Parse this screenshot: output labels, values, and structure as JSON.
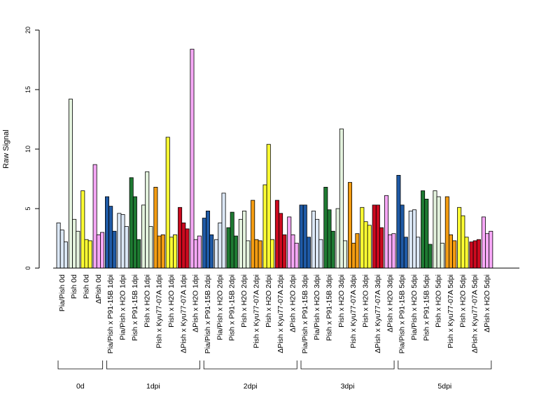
{
  "chart_data": {
    "type": "bar",
    "ylabel": "Raw Signal",
    "ylim": [
      0,
      20
    ],
    "yticks": [
      0,
      5,
      10,
      15,
      20
    ],
    "grid": false,
    "colors": {
      "lightblue": "#dce8f6",
      "blue": "#1f5aa6",
      "darkgreen": "#1e7a32",
      "lightgreen": "#e4f3de",
      "orange": "#f39c12",
      "yellow": "#ffff33",
      "red": "#cc0a1f",
      "violet": "#f6a8f6"
    },
    "groups": [
      {
        "label": "Pia/Pish 0d",
        "color": "lightblue",
        "values": [
          3.8,
          3.2,
          2.2
        ]
      },
      {
        "label": "Pish 0d",
        "color": "lightgreen",
        "values": [
          14.2,
          4.1,
          3.1
        ]
      },
      {
        "label": "Pish 0d",
        "color": "yellow",
        "values": [
          6.5,
          2.4,
          2.3
        ]
      },
      {
        "label": "ΔPish 0d",
        "color": "violet",
        "values": [
          8.7,
          2.8,
          3.0
        ]
      },
      {
        "label": "Pia/Pish x P91-15B 1dpi",
        "color": "blue",
        "values": [
          6.0,
          5.2,
          3.1
        ]
      },
      {
        "label": "Pia/Pish x H2O 1dpi",
        "color": "lightblue",
        "values": [
          4.6,
          4.5,
          3.5
        ]
      },
      {
        "label": "Pish x P91-15B 1dpi",
        "color": "darkgreen",
        "values": [
          7.6,
          6.0,
          2.4
        ]
      },
      {
        "label": "Pish x H2O 1dpi",
        "color": "lightgreen",
        "values": [
          5.3,
          8.1,
          3.5
        ]
      },
      {
        "label": "Pish x Kyu77-07A 1dpi",
        "color": "orange",
        "values": [
          6.8,
          2.7,
          2.8
        ]
      },
      {
        "label": "Pish x H2O 1dpi",
        "color": "yellow",
        "values": [
          11.0,
          2.6,
          2.8
        ]
      },
      {
        "label": "ΔPish x Kyu77-07A 1dpi",
        "color": "red",
        "values": [
          5.1,
          3.8,
          3.3
        ]
      },
      {
        "label": "ΔPish x H2O 1dpi",
        "color": "violet",
        "values": [
          18.4,
          2.4,
          2.7
        ]
      },
      {
        "label": "Pia/Pish x P91-15B 2dpi",
        "color": "blue",
        "values": [
          4.2,
          4.8,
          2.8
        ]
      },
      {
        "label": "Pia/Pish x H2O 2dpi",
        "color": "lightblue",
        "values": [
          2.4,
          3.8,
          6.3
        ]
      },
      {
        "label": "Pish x P91-15B 2dpi",
        "color": "darkgreen",
        "values": [
          3.4,
          4.7,
          2.7
        ]
      },
      {
        "label": "Pish x H2O 2dpi",
        "color": "lightgreen",
        "values": [
          4.1,
          4.8,
          2.3
        ]
      },
      {
        "label": "Pish x Kyu77-07A 2dpi",
        "color": "orange",
        "values": [
          5.7,
          2.4,
          2.3
        ]
      },
      {
        "label": "Pish x H2O 2dpi",
        "color": "yellow",
        "values": [
          7.0,
          10.4,
          2.4
        ]
      },
      {
        "label": "ΔPish x Kyu77-07A 2dpi",
        "color": "red",
        "values": [
          5.7,
          4.6,
          2.8
        ]
      },
      {
        "label": "ΔPish x H2O 2dpi",
        "color": "violet",
        "values": [
          4.3,
          2.8,
          2.1
        ]
      },
      {
        "label": "Pia/Pish x P91-15B 3dpi",
        "color": "blue",
        "values": [
          5.3,
          5.3,
          2.6
        ]
      },
      {
        "label": "Pia/Pish x H2O 3dpi",
        "color": "lightblue",
        "values": [
          4.8,
          4.1,
          2.4
        ]
      },
      {
        "label": "Pish x P91-15B 3dpi",
        "color": "darkgreen",
        "values": [
          6.8,
          4.9,
          3.1
        ]
      },
      {
        "label": "Pish x H2O 3dpi",
        "color": "lightgreen",
        "values": [
          5.0,
          11.7,
          2.3
        ]
      },
      {
        "label": "Pish x Kyu77-07A 3dpi",
        "color": "orange",
        "values": [
          7.2,
          2.1,
          2.9
        ]
      },
      {
        "label": "Pish x H2O 3dpi",
        "color": "yellow",
        "values": [
          5.1,
          3.9,
          3.6
        ]
      },
      {
        "label": "ΔPish x Kyu77-07A 3dpi",
        "color": "red",
        "values": [
          5.3,
          5.3,
          3.4
        ]
      },
      {
        "label": "ΔPish x H2O 3dpi",
        "color": "violet",
        "values": [
          6.1,
          2.8,
          2.9
        ]
      },
      {
        "label": "Pia/Pish x P91-15B 5dpi",
        "color": "blue",
        "values": [
          7.8,
          5.3,
          2.6
        ]
      },
      {
        "label": "Pia/Pish x H2O 5dpi",
        "color": "lightblue",
        "values": [
          4.8,
          4.9,
          2.6
        ]
      },
      {
        "label": "Pish x P91-15B 5dpi",
        "color": "darkgreen",
        "values": [
          6.5,
          5.8,
          2.0
        ]
      },
      {
        "label": "Pish x H2O 5dpi",
        "color": "lightgreen",
        "values": [
          6.5,
          6.0,
          2.1
        ]
      },
      {
        "label": "Pish x Kyu77-07A 5dpi",
        "color": "orange",
        "values": [
          6.0,
          2.8,
          2.3
        ]
      },
      {
        "label": "Pish x H2O 5dpi",
        "color": "yellow",
        "values": [
          5.1,
          4.4,
          2.6
        ]
      },
      {
        "label": "ΔPish x Kyu77-07A 5dpi",
        "color": "red",
        "values": [
          2.2,
          2.3,
          2.4
        ]
      },
      {
        "label": "ΔPish x H2O 5dpi",
        "color": "violet",
        "values": [
          4.3,
          2.9,
          3.1
        ]
      }
    ],
    "timepoints": [
      {
        "label": "0d",
        "first": 0,
        "last": 3
      },
      {
        "label": "1dpi",
        "first": 4,
        "last": 11
      },
      {
        "label": "2dpi",
        "first": 12,
        "last": 19
      },
      {
        "label": "3dpi",
        "first": 20,
        "last": 27
      },
      {
        "label": "5dpi",
        "first": 28,
        "last": 35
      }
    ]
  }
}
